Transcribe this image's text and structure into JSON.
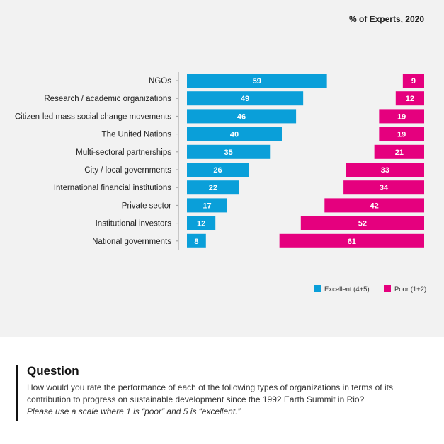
{
  "colors": {
    "excellent": "#0a9fd9",
    "poor": "#e5007e",
    "panel": "#f2f2f2"
  },
  "chart_data": {
    "type": "bar",
    "subtitle": "% of Experts, 2020",
    "categories": [
      "NGOs",
      "Research / academic organizations",
      "Citizen-led mass social change movements",
      "The United Nations",
      "Multi-sectoral partnerships",
      "City / local governments",
      "International financial institutions",
      "Private sector",
      "Institutional investors",
      "National governments"
    ],
    "series": [
      {
        "name": "Excellent (4+5)",
        "values": [
          59,
          49,
          46,
          40,
          35,
          26,
          22,
          17,
          12,
          8
        ]
      },
      {
        "name": "Poor (1+2)",
        "values": [
          9,
          12,
          19,
          19,
          21,
          33,
          34,
          42,
          52,
          61
        ]
      }
    ],
    "xlim": [
      0,
      100
    ],
    "grid": false,
    "legend_position": "bottom-right"
  },
  "question": {
    "title": "Question",
    "text": "How would you rate the performance of each of the following types of organizations in terms of its contribution to progress on sustainable development since the 1992 Earth Summit in Rio?",
    "note": "Please use a scale where 1 is “poor” and 5 is “excellent.”"
  }
}
